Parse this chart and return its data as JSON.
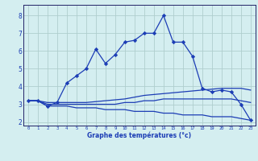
{
  "hours": [
    0,
    1,
    2,
    3,
    4,
    5,
    6,
    7,
    8,
    9,
    10,
    11,
    12,
    13,
    14,
    15,
    16,
    17,
    18,
    19,
    20,
    21,
    22,
    23
  ],
  "temp_main": [
    3.2,
    3.2,
    2.9,
    3.1,
    4.2,
    4.6,
    5.0,
    6.1,
    5.3,
    5.8,
    6.5,
    6.6,
    7.0,
    7.0,
    8.0,
    6.5,
    6.5,
    5.7,
    3.9,
    3.7,
    3.8,
    3.7,
    3.0,
    2.1
  ],
  "temp_high": [
    3.2,
    3.2,
    3.1,
    3.1,
    3.1,
    3.1,
    3.1,
    3.15,
    3.2,
    3.25,
    3.3,
    3.4,
    3.5,
    3.55,
    3.6,
    3.65,
    3.7,
    3.75,
    3.8,
    3.85,
    3.9,
    3.9,
    3.9,
    3.8
  ],
  "temp_mid": [
    3.2,
    3.2,
    3.0,
    3.0,
    3.0,
    3.0,
    3.0,
    3.0,
    3.0,
    3.0,
    3.1,
    3.1,
    3.2,
    3.2,
    3.3,
    3.3,
    3.3,
    3.3,
    3.3,
    3.3,
    3.3,
    3.3,
    3.2,
    3.1
  ],
  "temp_low": [
    3.2,
    3.2,
    2.9,
    2.9,
    2.9,
    2.8,
    2.8,
    2.8,
    2.7,
    2.7,
    2.7,
    2.6,
    2.6,
    2.6,
    2.5,
    2.5,
    2.4,
    2.4,
    2.4,
    2.3,
    2.3,
    2.3,
    2.2,
    2.1
  ],
  "ylabel_vals": [
    2,
    3,
    4,
    5,
    6,
    7,
    8
  ],
  "ylim": [
    1.8,
    8.6
  ],
  "xlim": [
    -0.5,
    23.5
  ],
  "line_color": "#1c3db5",
  "bg_color": "#d4eef0",
  "grid_color": "#b0cece",
  "xlabel": "Graphe des températures (°c)",
  "marker": "D",
  "markersize": 2.2,
  "linewidth": 0.9
}
